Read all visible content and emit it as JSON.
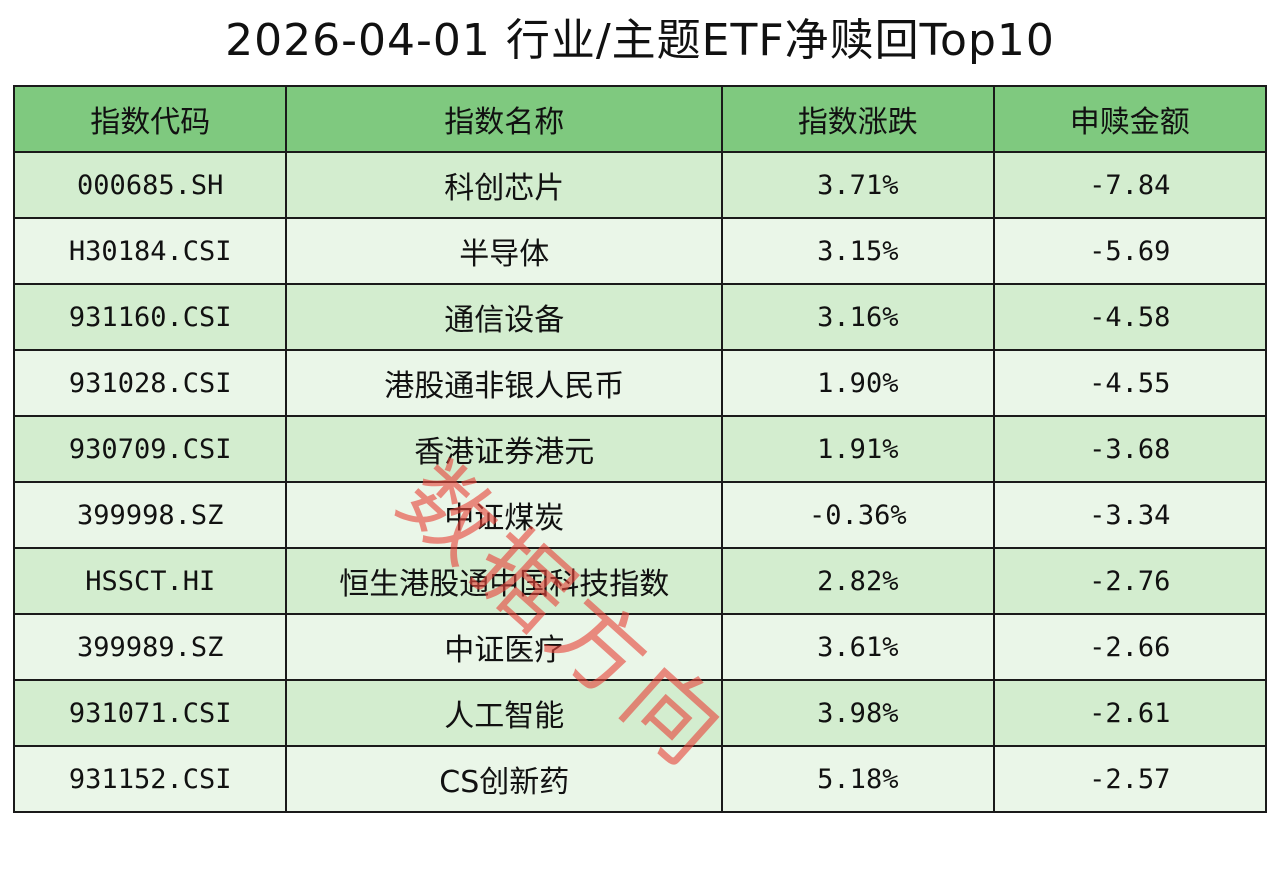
{
  "title": "2026-04-01 行业/主题ETF净赎回Top10",
  "headers": [
    "指数代码",
    "指数名称",
    "指数涨跌",
    "申赎金额"
  ],
  "rows": [
    {
      "code": "000685.SH",
      "name": "科创芯片",
      "change": "3.71%",
      "amount": "-7.84"
    },
    {
      "code": "H30184.CSI",
      "name": "半导体",
      "change": "3.15%",
      "amount": "-5.69"
    },
    {
      "code": "931160.CSI",
      "name": "通信设备",
      "change": "3.16%",
      "amount": "-4.58"
    },
    {
      "code": "931028.CSI",
      "name": "港股通非银人民币",
      "change": "1.90%",
      "amount": "-4.55"
    },
    {
      "code": "930709.CSI",
      "name": "香港证券港元",
      "change": "1.91%",
      "amount": "-3.68"
    },
    {
      "code": "399998.SZ",
      "name": "中证煤炭",
      "change": "-0.36%",
      "amount": "-3.34"
    },
    {
      "code": "HSSCT.HI",
      "name": "恒生港股通中国科技指数",
      "change": "2.82%",
      "amount": "-2.76"
    },
    {
      "code": "399989.SZ",
      "name": "中证医疗",
      "change": "3.61%",
      "amount": "-2.66"
    },
    {
      "code": "931071.CSI",
      "name": "人工智能",
      "change": "3.98%",
      "amount": "-2.61"
    },
    {
      "code": "931152.CSI",
      "name": "CS创新药",
      "change": "5.18%",
      "amount": "-2.57"
    }
  ],
  "watermark": "数据方向",
  "colors": {
    "header_bg": "#7fc97f",
    "row_odd_bg": "#d3edcf",
    "row_even_bg": "#eaf6e8",
    "watermark": "#e6463c"
  }
}
